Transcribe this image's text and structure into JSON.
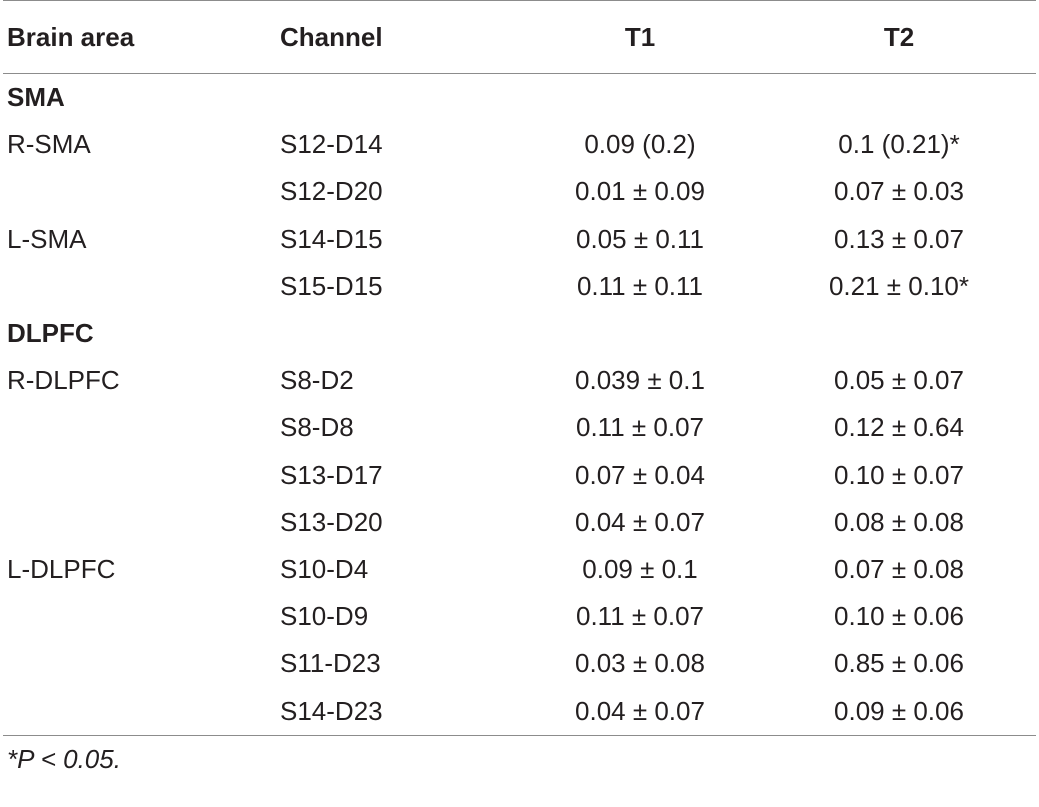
{
  "table": {
    "headers": [
      "Brain area",
      "Channel",
      "T1",
      "T2"
    ],
    "rows": [
      {
        "type": "section",
        "label": "SMA"
      },
      {
        "type": "data",
        "area": "R-SMA",
        "channel": "S12-D14",
        "t1": "0.09 (0.2)",
        "t2": "0.1 (0.21)*"
      },
      {
        "type": "data",
        "area": "",
        "channel": "S12-D20",
        "t1": "0.01 ± 0.09",
        "t2": "0.07 ± 0.03"
      },
      {
        "type": "data",
        "area": "L-SMA",
        "channel": "S14-D15",
        "t1": "0.05 ± 0.11",
        "t2": "0.13 ± 0.07"
      },
      {
        "type": "data",
        "area": "",
        "channel": "S15-D15",
        "t1": "0.11 ± 0.11",
        "t2": "0.21 ± 0.10*"
      },
      {
        "type": "section",
        "label": "DLPFC"
      },
      {
        "type": "data",
        "area": "R-DLPFC",
        "channel": "S8-D2",
        "t1": "0.039 ± 0.1",
        "t2": "0.05 ± 0.07"
      },
      {
        "type": "data",
        "area": "",
        "channel": "S8-D8",
        "t1": "0.11 ± 0.07",
        "t2": "0.12 ± 0.64"
      },
      {
        "type": "data",
        "area": "",
        "channel": "S13-D17",
        "t1": "0.07 ± 0.04",
        "t2": "0.10 ± 0.07"
      },
      {
        "type": "data",
        "area": "",
        "channel": "S13-D20",
        "t1": "0.04 ± 0.07",
        "t2": "0.08 ± 0.08"
      },
      {
        "type": "data",
        "area": "L-DLPFC",
        "channel": "S10-D4",
        "t1": "0.09 ± 0.1",
        "t2": "0.07 ± 0.08"
      },
      {
        "type": "data",
        "area": "",
        "channel": "S10-D9",
        "t1": "0.11 ± 0.07",
        "t2": "0.10 ± 0.06"
      },
      {
        "type": "data",
        "area": "",
        "channel": "S11-D23",
        "t1": "0.03 ± 0.08",
        "t2": "0.85 ± 0.06"
      },
      {
        "type": "data",
        "area": "",
        "channel": "S14-D23",
        "t1": "0.04 ± 0.07",
        "t2": "0.09 ± 0.06"
      }
    ]
  },
  "footnote": "*P < 0.05."
}
